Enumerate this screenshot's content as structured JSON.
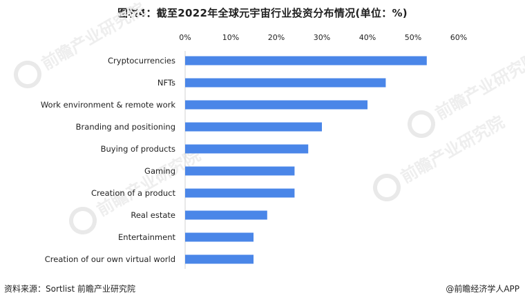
{
  "title": "图表4：截至2022年全球元宇宙行业投资分布情况(单位：%)",
  "watermark_text": "前瞻产业研究院",
  "source_text": "资料来源：Sortlist 前瞻产业研究院",
  "credit_text": "@前瞻经济学人APP",
  "colors": {
    "bar": "#4a86e8",
    "text": "#222222"
  },
  "chart_data": {
    "type": "bar",
    "orientation": "horizontal",
    "title": "图表4：截至2022年全球元宇宙行业投资分布情况(单位：%)",
    "xlabel": "",
    "ylabel": "",
    "xlim": [
      0,
      60
    ],
    "x_ticks": [
      "0%",
      "10%",
      "20%",
      "30%",
      "40%",
      "50%",
      "60%"
    ],
    "x_axis_position": "top",
    "grid": false,
    "categories": [
      "Cryptocurrencies",
      "NFTs",
      "Work environment & remote work",
      "Branding and positioning",
      "Buying of products",
      "Gaming",
      "Creation of a product",
      "Real estate",
      "Entertainment",
      "Creation of our own virtual world"
    ],
    "values": [
      53,
      44,
      40,
      30,
      27,
      24,
      24,
      18,
      15,
      15
    ]
  }
}
